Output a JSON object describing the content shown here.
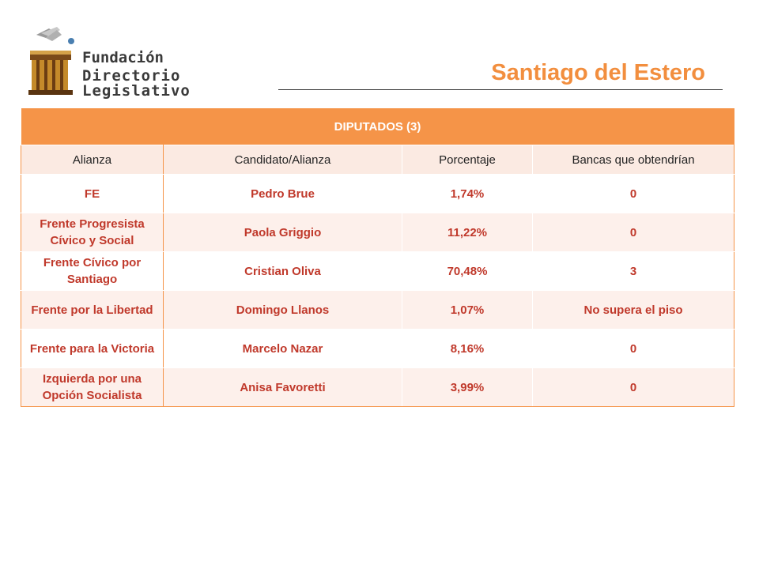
{
  "logo": {
    "line1": "Fundación",
    "line2": "Directorio Legislativo"
  },
  "title": "Santiago del Estero",
  "colors": {
    "accent": "#F59448",
    "title": "#F28E3E",
    "value_text": "#C0392B"
  },
  "table": {
    "header": "DIPUTADOS (3)",
    "columns": [
      "Alianza",
      "Candidato/Alianza",
      "Porcentaje",
      "Bancas que obtendrían"
    ],
    "rows": [
      {
        "alianza": "FE",
        "candidato": "Pedro Brue",
        "porcentaje": "1,74%",
        "bancas": "0"
      },
      {
        "alianza": "Frente Progresista Cívico y Social",
        "candidato": "Paola Griggio",
        "porcentaje": "11,22%",
        "bancas": "0"
      },
      {
        "alianza": "Frente Cívico por Santiago",
        "candidato": "Cristian Oliva",
        "porcentaje": "70,48%",
        "bancas": "3"
      },
      {
        "alianza": "Frente por la Libertad",
        "candidato": "Domingo Llanos",
        "porcentaje": "1,07%",
        "bancas": "No supera el piso"
      },
      {
        "alianza": "Frente para la Victoria",
        "candidato": "Marcelo Nazar",
        "porcentaje": "8,16%",
        "bancas": "0"
      },
      {
        "alianza": "Izquierda por una Opción Socialista",
        "candidato": "Anisa Favoretti",
        "porcentaje": "3,99%",
        "bancas": "0"
      }
    ]
  }
}
